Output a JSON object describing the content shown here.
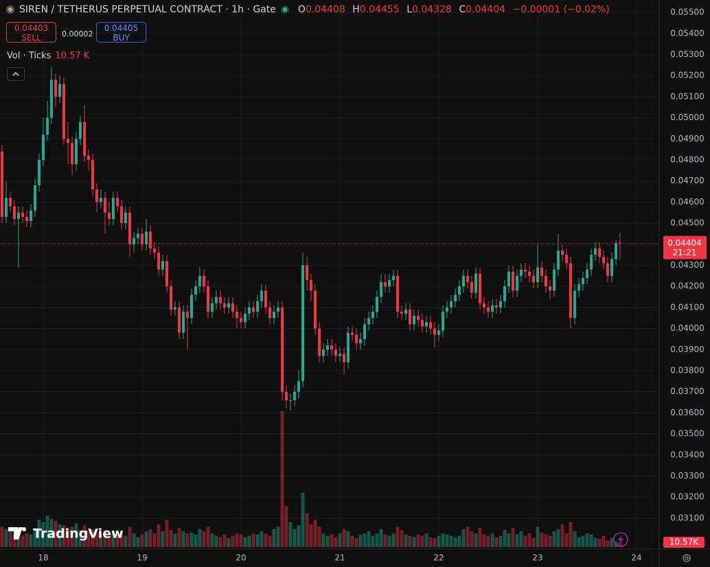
{
  "header": {
    "symbol": "SIREN / TETHERUS PERPETUAL CONTRACT · 1h · Gate",
    "ohlc": [
      {
        "key": "O",
        "value": 0.04408
      },
      {
        "key": "H",
        "value": 0.04455
      },
      {
        "key": "L",
        "value": 0.04328
      },
      {
        "key": "C",
        "value": 0.04404
      }
    ],
    "change": "−0.00001 (−0.02%)"
  },
  "order": {
    "sell_price": 0.04403,
    "sell_label": "SELL",
    "spread": 2e-05,
    "buy_price": 0.04405,
    "buy_label": "BUY"
  },
  "volume_legend": {
    "label": "Vol · Ticks",
    "value": "10.57 K"
  },
  "logo": "TradingView",
  "chart_data": {
    "type": "candlestick",
    "x": [
      17.583,
      17.625,
      17.667,
      17.708,
      17.75,
      17.792,
      17.833,
      17.875,
      17.917,
      17.958,
      18,
      18.042,
      18.083,
      18.125,
      18.167,
      18.208,
      18.25,
      18.292,
      18.333,
      18.375,
      18.417,
      18.458,
      18.5,
      18.542,
      18.583,
      18.625,
      18.667,
      18.708,
      18.75,
      18.792,
      18.833,
      18.875,
      18.917,
      18.958,
      19,
      19.042,
      19.083,
      19.125,
      19.167,
      19.208,
      19.25,
      19.292,
      19.333,
      19.375,
      19.417,
      19.458,
      19.5,
      19.542,
      19.583,
      19.625,
      19.667,
      19.708,
      19.75,
      19.792,
      19.833,
      19.875,
      19.917,
      19.958,
      20,
      20.042,
      20.083,
      20.125,
      20.167,
      20.208,
      20.25,
      20.292,
      20.333,
      20.375,
      20.417,
      20.458,
      20.5,
      20.542,
      20.583,
      20.625,
      20.667,
      20.708,
      20.75,
      20.792,
      20.833,
      20.875,
      20.917,
      20.958,
      21,
      21.042,
      21.083,
      21.125,
      21.167,
      21.208,
      21.25,
      21.292,
      21.333,
      21.375,
      21.417,
      21.458,
      21.5,
      21.542,
      21.583,
      21.625,
      21.667,
      21.708,
      21.75,
      21.792,
      21.833,
      21.875,
      21.917,
      21.958,
      22,
      22.042,
      22.083,
      22.125,
      22.167,
      22.208,
      22.25,
      22.292,
      22.333,
      22.375,
      22.417,
      22.458,
      22.5,
      22.542,
      22.583,
      22.625,
      22.667,
      22.708,
      22.75,
      22.792,
      22.833,
      22.875,
      22.917,
      22.958,
      23,
      23.042,
      23.083,
      23.125,
      23.167,
      23.208,
      23.25,
      23.292,
      23.333,
      23.375,
      23.417,
      23.458,
      23.5,
      23.542,
      23.583,
      23.625,
      23.667,
      23.708,
      23.75,
      23.792,
      23.833
    ],
    "open": [
      0.0484,
      0.0453,
      0.0462,
      0.0458,
      0.0452,
      0.0455,
      0.0453,
      0.0451,
      0.0456,
      0.0468,
      0.048,
      0.0492,
      0.05,
      0.0518,
      0.051,
      0.0516,
      0.049,
      0.0488,
      0.0478,
      0.049,
      0.0498,
      0.0482,
      0.048,
      0.0466,
      0.046,
      0.0462,
      0.0455,
      0.0452,
      0.0462,
      0.0458,
      0.045,
      0.0455,
      0.044,
      0.0443,
      0.0445,
      0.044,
      0.0446,
      0.0438,
      0.0436,
      0.0428,
      0.0432,
      0.042,
      0.0409,
      0.041,
      0.0398,
      0.0408,
      0.0405,
      0.0416,
      0.042,
      0.0425,
      0.042,
      0.0408,
      0.0412,
      0.0415,
      0.0412,
      0.041,
      0.0412,
      0.0408,
      0.0405,
      0.0403,
      0.0407,
      0.041,
      0.0408,
      0.0413,
      0.0418,
      0.041,
      0.0405,
      0.0408,
      0.041,
      0.037,
      0.0366,
      0.0366,
      0.037,
      0.0375,
      0.043,
      0.0423,
      0.0418,
      0.04,
      0.0387,
      0.039,
      0.0392,
      0.039,
      0.0387,
      0.0388,
      0.0384,
      0.0398,
      0.0397,
      0.0393,
      0.0395,
      0.0402,
      0.0405,
      0.0408,
      0.0415,
      0.0422,
      0.042,
      0.0423,
      0.0425,
      0.0408,
      0.0407,
      0.0409,
      0.0402,
      0.0406,
      0.0404,
      0.0401,
      0.0403,
      0.04,
      0.0397,
      0.0399,
      0.0408,
      0.041,
      0.0413,
      0.0416,
      0.042,
      0.0425,
      0.0422,
      0.0417,
      0.0426,
      0.0412,
      0.041,
      0.0408,
      0.0411,
      0.041,
      0.0413,
      0.042,
      0.0427,
      0.0418,
      0.0425,
      0.0428,
      0.0427,
      0.0425,
      0.0422,
      0.0429,
      0.0425,
      0.042,
      0.0418,
      0.0428,
      0.0437,
      0.0435,
      0.0431,
      0.0405,
      0.0418,
      0.0421,
      0.0424,
      0.0428,
      0.0435,
      0.0438,
      0.0434,
      0.0431,
      0.0425,
      0.0433,
      0.04408
    ],
    "high": [
      0.0487,
      0.047,
      0.0465,
      0.0461,
      0.0458,
      0.0458,
      0.0456,
      0.0459,
      0.0471,
      0.0483,
      0.05,
      0.0508,
      0.0524,
      0.0521,
      0.052,
      0.0519,
      0.0498,
      0.0491,
      0.0493,
      0.0501,
      0.0506,
      0.0485,
      0.0483,
      0.0469,
      0.0466,
      0.0465,
      0.046,
      0.0465,
      0.0465,
      0.0461,
      0.0458,
      0.0458,
      0.0446,
      0.0448,
      0.0448,
      0.0452,
      0.0449,
      0.0441,
      0.0439,
      0.0435,
      0.0435,
      0.0423,
      0.0413,
      0.0413,
      0.0411,
      0.0411,
      0.0419,
      0.0423,
      0.0429,
      0.0428,
      0.0423,
      0.0415,
      0.0418,
      0.0418,
      0.0415,
      0.0415,
      0.0415,
      0.0411,
      0.0408,
      0.041,
      0.0413,
      0.0413,
      0.0416,
      0.0421,
      0.0421,
      0.0413,
      0.0411,
      0.0413,
      0.0413,
      0.0373,
      0.0369,
      0.0373,
      0.038,
      0.0436,
      0.0434,
      0.0426,
      0.0421,
      0.0403,
      0.0393,
      0.0395,
      0.0395,
      0.0393,
      0.0391,
      0.0391,
      0.0401,
      0.0401,
      0.04,
      0.0398,
      0.0405,
      0.0408,
      0.0411,
      0.0418,
      0.0426,
      0.0426,
      0.0426,
      0.0428,
      0.0428,
      0.0411,
      0.0412,
      0.0412,
      0.0409,
      0.0409,
      0.0407,
      0.0406,
      0.0406,
      0.0403,
      0.0402,
      0.0411,
      0.0413,
      0.0416,
      0.0419,
      0.0423,
      0.0428,
      0.0428,
      0.0425,
      0.0429,
      0.0429,
      0.0415,
      0.0413,
      0.0414,
      0.0414,
      0.0416,
      0.0423,
      0.043,
      0.043,
      0.0428,
      0.0431,
      0.0431,
      0.043,
      0.0428,
      0.044,
      0.0432,
      0.0428,
      0.0423,
      0.0431,
      0.0445,
      0.044,
      0.0438,
      0.0434,
      0.0421,
      0.0424,
      0.0427,
      0.0431,
      0.0438,
      0.0441,
      0.0441,
      0.0437,
      0.0434,
      0.0436,
      0.0442,
      0.04455
    ],
    "low": [
      0.045,
      0.045,
      0.0455,
      0.0449,
      0.0429,
      0.045,
      0.0448,
      0.0448,
      0.0453,
      0.0465,
      0.0477,
      0.0489,
      0.0497,
      0.0505,
      0.0507,
      0.0487,
      0.0478,
      0.0473,
      0.0475,
      0.0487,
      0.0479,
      0.0475,
      0.0463,
      0.0455,
      0.0457,
      0.0445,
      0.0449,
      0.0449,
      0.0455,
      0.0447,
      0.0447,
      0.0434,
      0.0436,
      0.044,
      0.0437,
      0.0437,
      0.0435,
      0.0433,
      0.0425,
      0.0425,
      0.0417,
      0.0406,
      0.0406,
      0.0395,
      0.0395,
      0.039,
      0.0402,
      0.0413,
      0.0417,
      0.0417,
      0.0405,
      0.0405,
      0.0409,
      0.0409,
      0.0407,
      0.0407,
      0.0405,
      0.04,
      0.04,
      0.04,
      0.0404,
      0.0405,
      0.0405,
      0.041,
      0.0407,
      0.0402,
      0.0402,
      0.0405,
      0.0366,
      0.0362,
      0.0361,
      0.0363,
      0.0367,
      0.0372,
      0.0418,
      0.0413,
      0.0397,
      0.0384,
      0.0384,
      0.0387,
      0.0387,
      0.0384,
      0.0384,
      0.0378,
      0.0381,
      0.0394,
      0.039,
      0.039,
      0.0392,
      0.0399,
      0.0402,
      0.0405,
      0.0412,
      0.0417,
      0.0417,
      0.042,
      0.0405,
      0.0404,
      0.0404,
      0.0399,
      0.0399,
      0.0401,
      0.0398,
      0.0398,
      0.0397,
      0.0391,
      0.0394,
      0.0396,
      0.0405,
      0.0407,
      0.041,
      0.0413,
      0.0417,
      0.0419,
      0.0414,
      0.0414,
      0.0409,
      0.0407,
      0.0405,
      0.0405,
      0.0407,
      0.0407,
      0.041,
      0.0417,
      0.0415,
      0.0415,
      0.0422,
      0.0424,
      0.0422,
      0.0419,
      0.0419,
      0.0422,
      0.0417,
      0.0414,
      0.0415,
      0.0425,
      0.0432,
      0.0428,
      0.04,
      0.0402,
      0.0415,
      0.0418,
      0.0421,
      0.0425,
      0.0432,
      0.0431,
      0.0428,
      0.0422,
      0.0422,
      0.043,
      0.04328
    ],
    "close": [
      0.0453,
      0.0462,
      0.0458,
      0.0452,
      0.0455,
      0.0453,
      0.0451,
      0.0456,
      0.0468,
      0.048,
      0.0492,
      0.05,
      0.0518,
      0.051,
      0.0516,
      0.049,
      0.0488,
      0.0478,
      0.049,
      0.0498,
      0.0482,
      0.048,
      0.0466,
      0.046,
      0.0462,
      0.0455,
      0.0452,
      0.0462,
      0.0458,
      0.045,
      0.0455,
      0.044,
      0.0443,
      0.0445,
      0.044,
      0.0446,
      0.0438,
      0.0436,
      0.0428,
      0.0432,
      0.042,
      0.0409,
      0.041,
      0.0398,
      0.0408,
      0.0405,
      0.0416,
      0.042,
      0.0425,
      0.042,
      0.0408,
      0.0412,
      0.0415,
      0.0412,
      0.041,
      0.0412,
      0.0408,
      0.0405,
      0.0403,
      0.0407,
      0.041,
      0.0408,
      0.0413,
      0.0418,
      0.041,
      0.0405,
      0.0408,
      0.041,
      0.037,
      0.0366,
      0.0366,
      0.037,
      0.0375,
      0.043,
      0.0423,
      0.0418,
      0.04,
      0.0387,
      0.039,
      0.0392,
      0.039,
      0.0387,
      0.0388,
      0.0384,
      0.0398,
      0.0397,
      0.0393,
      0.0395,
      0.0402,
      0.0405,
      0.0408,
      0.0415,
      0.0422,
      0.042,
      0.0423,
      0.0425,
      0.0408,
      0.0407,
      0.0409,
      0.0402,
      0.0406,
      0.0404,
      0.0401,
      0.0403,
      0.04,
      0.0397,
      0.0399,
      0.0408,
      0.041,
      0.0413,
      0.0416,
      0.042,
      0.0425,
      0.0422,
      0.0417,
      0.0426,
      0.0412,
      0.041,
      0.0408,
      0.0411,
      0.041,
      0.0413,
      0.042,
      0.0427,
      0.0418,
      0.0425,
      0.0428,
      0.0427,
      0.0425,
      0.0422,
      0.0429,
      0.0425,
      0.042,
      0.0418,
      0.0428,
      0.0437,
      0.0435,
      0.0431,
      0.0405,
      0.0418,
      0.0421,
      0.0424,
      0.0428,
      0.0435,
      0.0438,
      0.0434,
      0.0431,
      0.0425,
      0.0433,
      0.04405,
      0.04404
    ],
    "volume": [
      45,
      40,
      35,
      30,
      38,
      25,
      30,
      28,
      42,
      60,
      55,
      70,
      62,
      58,
      50,
      48,
      40,
      45,
      52,
      38,
      48,
      35,
      40,
      32,
      30,
      38,
      25,
      36,
      28,
      30,
      25,
      45,
      30,
      22,
      28,
      35,
      40,
      30,
      50,
      35,
      60,
      38,
      30,
      42,
      35,
      30,
      32,
      28,
      40,
      35,
      45,
      30,
      25,
      22,
      28,
      20,
      25,
      30,
      28,
      22,
      25,
      30,
      28,
      35,
      30,
      25,
      40,
      45,
      300,
      90,
      55,
      40,
      48,
      120,
      75,
      50,
      60,
      45,
      30,
      25,
      28,
      22,
      30,
      40,
      35,
      25,
      20,
      28,
      30,
      35,
      25,
      30,
      40,
      28,
      25,
      30,
      45,
      38,
      28,
      25,
      22,
      28,
      25,
      30,
      22,
      20,
      25,
      30,
      28,
      25,
      22,
      25,
      40,
      45,
      35,
      30,
      42,
      28,
      25,
      30,
      22,
      25,
      38,
      30,
      42,
      28,
      35,
      25,
      30,
      20,
      45,
      32,
      28,
      25,
      35,
      40,
      50,
      30,
      55,
      35,
      22,
      25,
      30,
      28,
      20,
      18,
      25,
      15,
      20,
      12,
      10.57
    ],
    "volume_label": "10.57K",
    "vlim": [
      0,
      400
    ],
    "countdown": "21:21",
    "xlim": [
      17.5625,
      24.229
    ],
    "xticks": [
      18,
      19,
      20,
      21,
      22,
      23,
      24
    ],
    "ylim": [
      0.02953,
      0.05559
    ],
    "yticks": [
      {
        "value": 0.031,
        "label": "0.03100"
      },
      {
        "value": 0.032,
        "label": "0.03200"
      },
      {
        "value": 0.033,
        "label": "0.03300"
      },
      {
        "value": 0.034,
        "label": "0.03400"
      },
      {
        "value": 0.035,
        "label": "0.03500"
      },
      {
        "value": 0.036,
        "label": "0.03600"
      },
      {
        "value": 0.037,
        "label": "0.03700"
      },
      {
        "value": 0.038,
        "label": "0.03800"
      },
      {
        "value": 0.039,
        "label": "0.03900"
      },
      {
        "value": 0.04,
        "label": "0.04000"
      },
      {
        "value": 0.041,
        "label": "0.04100"
      },
      {
        "value": 0.042,
        "label": "0.04200"
      },
      {
        "value": 0.043,
        "label": "0.04300"
      },
      {
        "value": 0.044,
        "label": "0.04400"
      },
      {
        "value": 0.045,
        "label": "0.04500"
      },
      {
        "value": 0.046,
        "label": "0.04600"
      },
      {
        "value": 0.047,
        "label": "0.04700"
      },
      {
        "value": 0.048,
        "label": "0.04800"
      },
      {
        "value": 0.049,
        "label": "0.04900"
      },
      {
        "value": 0.05,
        "label": "0.05000"
      },
      {
        "value": 0.051,
        "label": "0.05100"
      },
      {
        "value": 0.052,
        "label": "0.05200"
      },
      {
        "value": 0.053,
        "label": "0.05300"
      },
      {
        "value": 0.054,
        "label": "0.05400"
      },
      {
        "value": 0.055,
        "label": "0.05500"
      }
    ],
    "grid": true,
    "up_color": "#22ab94",
    "down_color": "#f23645"
  }
}
